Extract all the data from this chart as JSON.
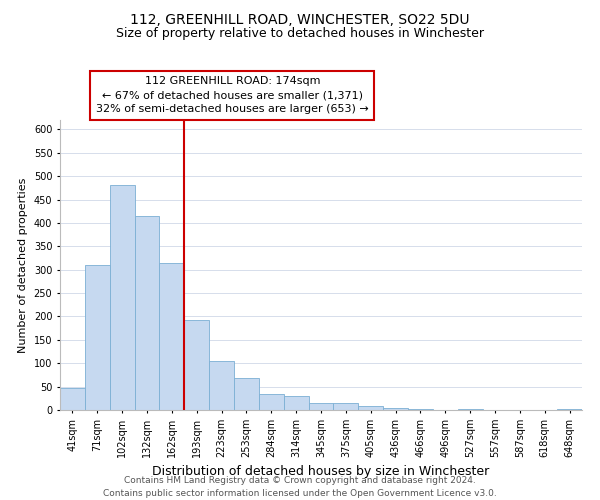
{
  "title": "112, GREENHILL ROAD, WINCHESTER, SO22 5DU",
  "subtitle": "Size of property relative to detached houses in Winchester",
  "xlabel": "Distribution of detached houses by size in Winchester",
  "ylabel": "Number of detached properties",
  "categories": [
    "41sqm",
    "71sqm",
    "102sqm",
    "132sqm",
    "162sqm",
    "193sqm",
    "223sqm",
    "253sqm",
    "284sqm",
    "314sqm",
    "345sqm",
    "375sqm",
    "405sqm",
    "436sqm",
    "466sqm",
    "496sqm",
    "527sqm",
    "557sqm",
    "587sqm",
    "618sqm",
    "648sqm"
  ],
  "values": [
    46,
    310,
    480,
    415,
    315,
    192,
    105,
    69,
    35,
    30,
    14,
    14,
    8,
    5,
    2,
    0,
    2,
    0,
    0,
    0,
    2
  ],
  "bar_color": "#c6d9f0",
  "bar_edge_color": "#7bafd4",
  "marker_line_color": "#cc0000",
  "annotation_title": "112 GREENHILL ROAD: 174sqm",
  "annotation_line1": "← 67% of detached houses are smaller (1,371)",
  "annotation_line2": "32% of semi-detached houses are larger (653) →",
  "annotation_box_color": "#ffffff",
  "annotation_box_edge_color": "#cc0000",
  "ylim": [
    0,
    620
  ],
  "yticks": [
    0,
    50,
    100,
    150,
    200,
    250,
    300,
    350,
    400,
    450,
    500,
    550,
    600
  ],
  "background_color": "#ffffff",
  "grid_color": "#d0d8e8",
  "footer_line1": "Contains HM Land Registry data © Crown copyright and database right 2024.",
  "footer_line2": "Contains public sector information licensed under the Open Government Licence v3.0.",
  "title_fontsize": 10,
  "subtitle_fontsize": 9,
  "xlabel_fontsize": 9,
  "ylabel_fontsize": 8,
  "tick_fontsize": 7,
  "annotation_fontsize": 8,
  "footer_fontsize": 6.5
}
